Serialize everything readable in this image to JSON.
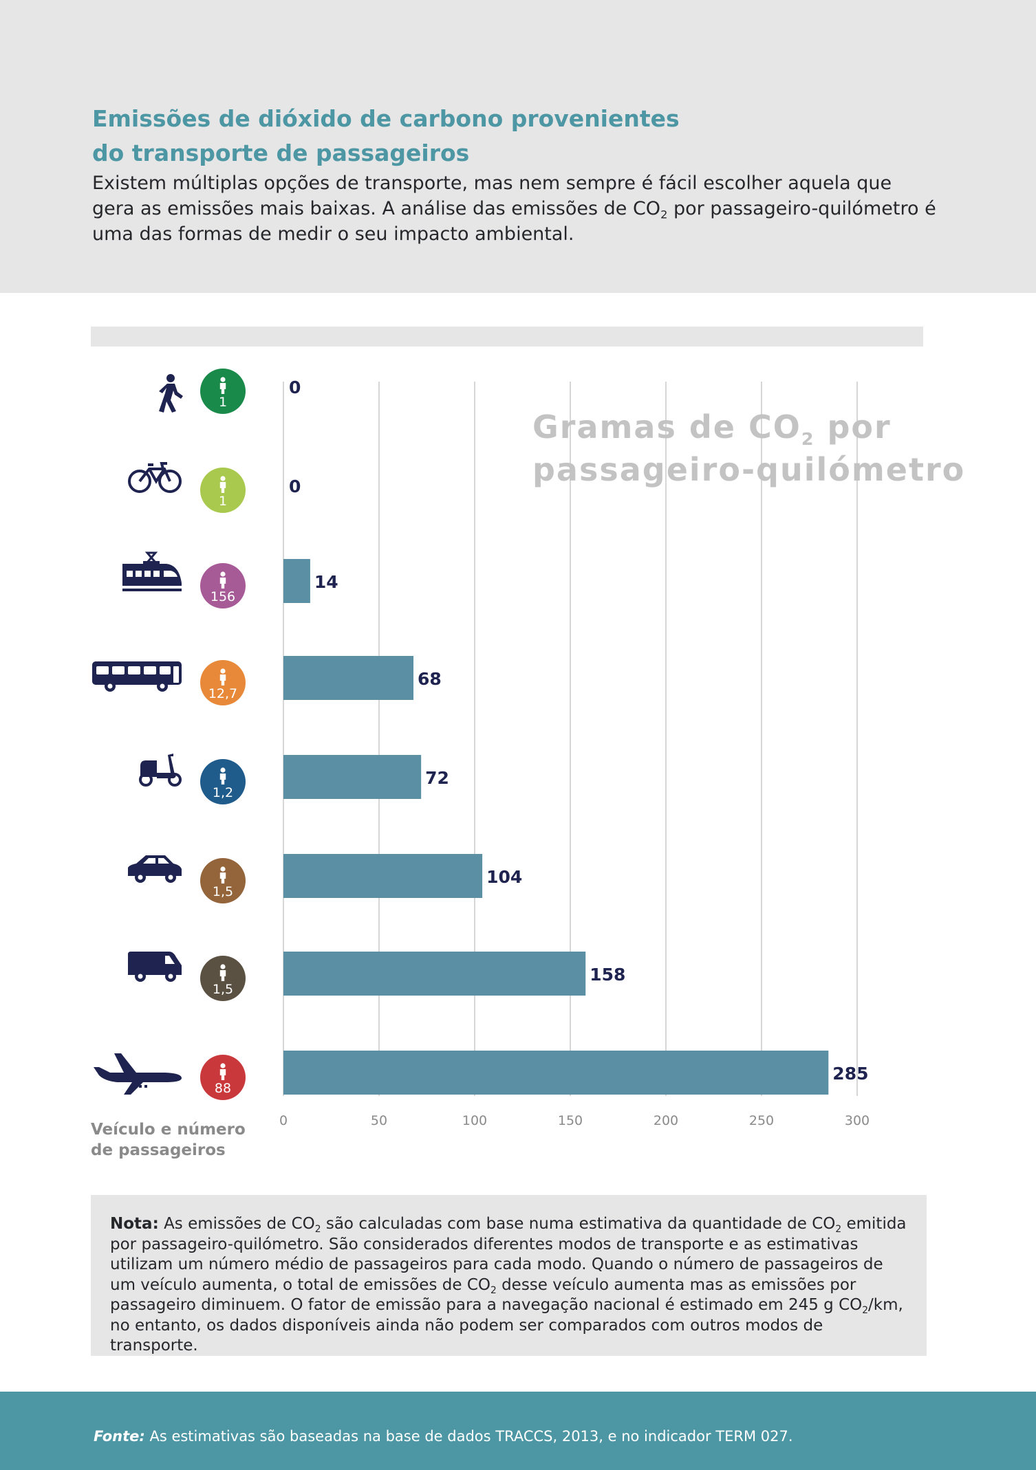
{
  "header": {
    "title_line1": "Emissões de dióxido de carbono provenientes",
    "title_line2": "do transporte de passageiros",
    "intro_part1": "Existem múltiplas opções de transporte, mas nem sempre é fácil escolher aquela que gera as emissões mais baixas. A análise das emissões de CO",
    "intro_sub": "2",
    "intro_part2": " por passageiro-quilómetro é uma das formas de medir o seu impacto ambiental."
  },
  "chart_data": {
    "type": "bar",
    "orientation": "horizontal",
    "title_part1": "Gramas de CO",
    "title_sub": "2",
    "title_part2": " por passageiro-quilómetro",
    "y_axis_label_line1": "Veículo e número",
    "y_axis_label_line2": "de passageiros",
    "xlim": [
      0,
      300
    ],
    "x_ticks": [
      0,
      50,
      100,
      150,
      200,
      250,
      300
    ],
    "grid": true,
    "bar_color": "#5a8fa4",
    "categories": [
      "walking-icon",
      "bicycle-icon",
      "train-icon",
      "bus-icon",
      "scooter-icon",
      "car-icon",
      "van-icon",
      "airplane-icon"
    ],
    "passengers": [
      "1",
      "1",
      "156",
      "12,7",
      "1,2",
      "1,5",
      "1,5",
      "88"
    ],
    "badge_colors": [
      "#1a8a4a",
      "#a9c94e",
      "#a65b96",
      "#e8893a",
      "#1f5c8c",
      "#94643a",
      "#5a5142",
      "#c9393b"
    ],
    "values": [
      0,
      0,
      14,
      68,
      72,
      104,
      158,
      285
    ],
    "value_labels": [
      "0",
      "0",
      "14",
      "68",
      "72",
      "104",
      "158",
      "285"
    ]
  },
  "note": {
    "label": "Nota:",
    "p1": " As emissões de CO",
    "s1": "2",
    "p2": " são calculadas com base numa estimativa da quantidade de CO",
    "s2": "2",
    "p3": " emitida por passageiro-quilómetro. São considerados diferentes modos de transporte e as estimativas utilizam um número médio de passageiros para cada modo. Quando o número de passageiros de um veículo aumenta, o total de emissões de CO",
    "s3": "2",
    "p4": " desse veículo aumenta mas as emissões por passageiro diminuem. O fator de emissão para a navegação nacional é estimado em 245 g CO",
    "s4": "2",
    "p5": "/km, no entanto, os dados disponíveis ainda não podem ser comparados com outros modos de transporte."
  },
  "footer": {
    "label": "Fonte:",
    "text": " As estimativas são baseadas na base de dados TRACCS, 2013, e no indicador TERM 027."
  }
}
